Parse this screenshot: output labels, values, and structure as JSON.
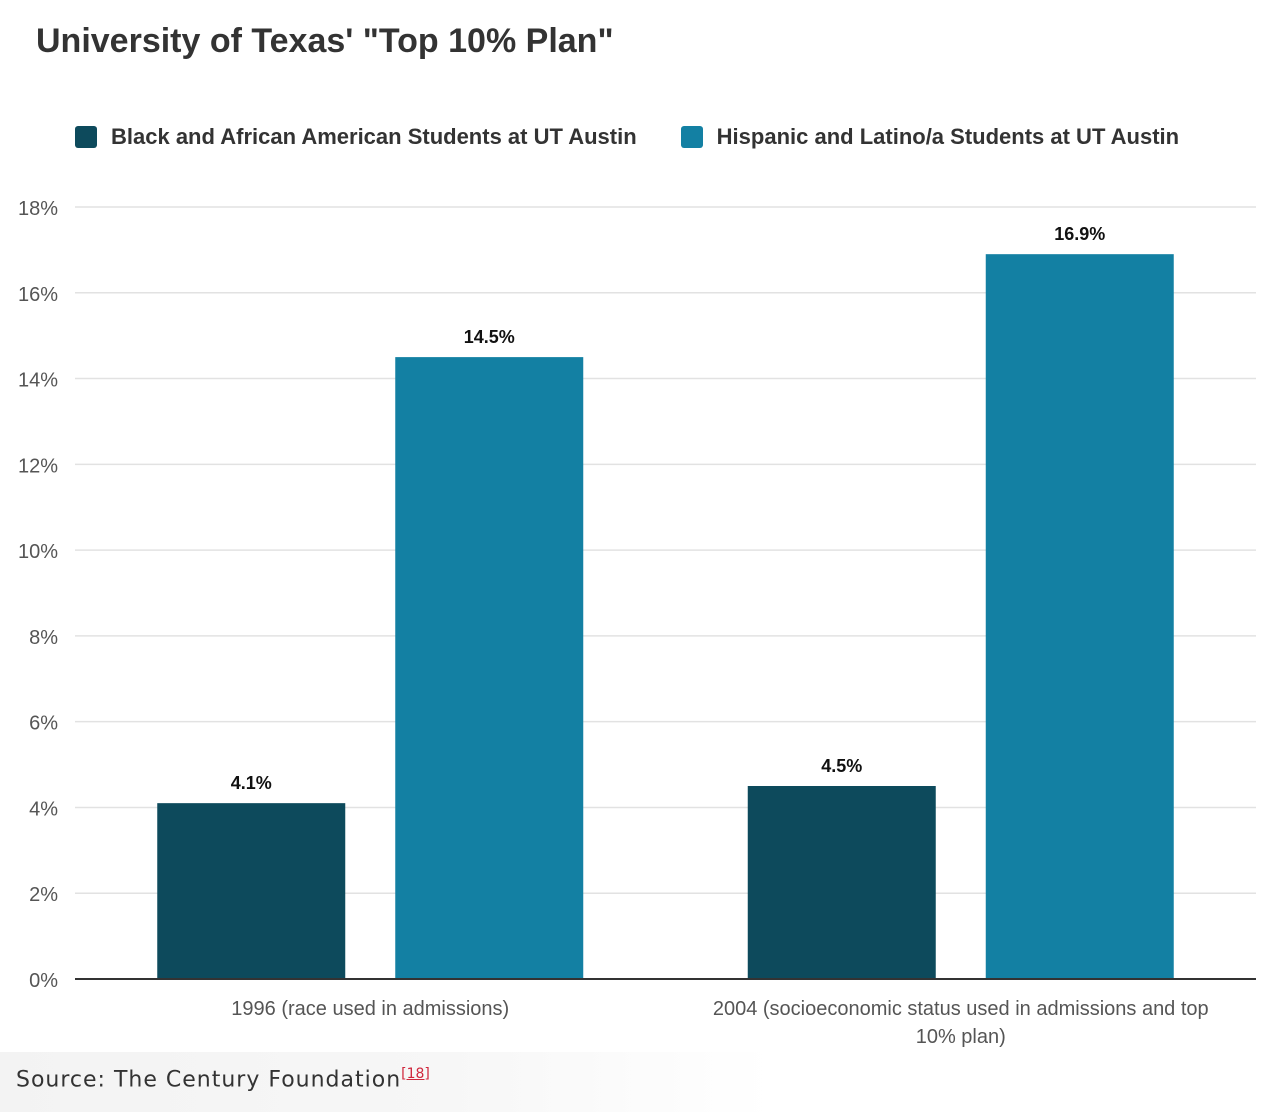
{
  "title": "University of Texas' \"Top 10% Plan\"",
  "source": {
    "label": "Source: The Century Foundation",
    "ref": "[18]"
  },
  "colors": {
    "series1": "#0d4a5c",
    "series2": "#1380a3",
    "grid": "#e2e2e2",
    "axis": "#333333"
  },
  "chart_data": {
    "type": "bar",
    "title": "University of Texas' \"Top 10% Plan\"",
    "categories": [
      [
        "1996 (race used in admissions)"
      ],
      [
        "2004 (socioeconomic status used in admissions and top",
        "10% plan)"
      ]
    ],
    "series": [
      {
        "name": "Black and African American Students at UT Austin",
        "values": [
          4.1,
          4.5
        ],
        "labels": [
          "4.1%",
          "4.5%"
        ]
      },
      {
        "name": "Hispanic and Latino/a Students at UT Austin",
        "values": [
          14.5,
          16.9
        ],
        "labels": [
          "14.5%",
          "16.9%"
        ]
      }
    ],
    "ylim": [
      0,
      18
    ],
    "yticks": [
      0,
      2,
      4,
      6,
      8,
      10,
      12,
      14,
      16,
      18
    ],
    "ytick_labels": [
      "0%",
      "2%",
      "4%",
      "6%",
      "8%",
      "10%",
      "12%",
      "14%",
      "16%",
      "18%"
    ],
    "grid": true,
    "legend": "top-left"
  }
}
